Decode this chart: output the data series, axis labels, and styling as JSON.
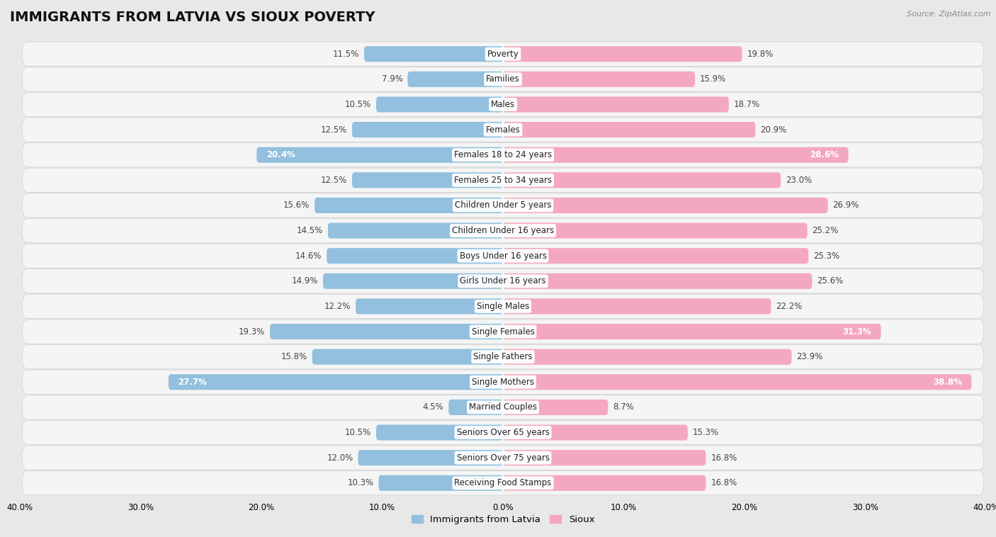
{
  "title": "IMMIGRANTS FROM LATVIA VS SIOUX POVERTY",
  "source": "Source: ZipAtlas.com",
  "categories": [
    "Poverty",
    "Families",
    "Males",
    "Females",
    "Females 18 to 24 years",
    "Females 25 to 34 years",
    "Children Under 5 years",
    "Children Under 16 years",
    "Boys Under 16 years",
    "Girls Under 16 years",
    "Single Males",
    "Single Females",
    "Single Fathers",
    "Single Mothers",
    "Married Couples",
    "Seniors Over 65 years",
    "Seniors Over 75 years",
    "Receiving Food Stamps"
  ],
  "latvia_values": [
    11.5,
    7.9,
    10.5,
    12.5,
    20.4,
    12.5,
    15.6,
    14.5,
    14.6,
    14.9,
    12.2,
    19.3,
    15.8,
    27.7,
    4.5,
    10.5,
    12.0,
    10.3
  ],
  "sioux_values": [
    19.8,
    15.9,
    18.7,
    20.9,
    28.6,
    23.0,
    26.9,
    25.2,
    25.3,
    25.6,
    22.2,
    31.3,
    23.9,
    38.8,
    8.7,
    15.3,
    16.8,
    16.8
  ],
  "latvia_color": "#92c0de",
  "sioux_color": "#f4a8bf",
  "axis_max": 40.0,
  "background_color": "#e8e8e8",
  "bar_background_color": "#f5f5f5",
  "bar_height": 0.62,
  "title_fontsize": 14,
  "label_fontsize": 8.5,
  "value_fontsize": 8.5,
  "legend_label_latvia": "Immigrants from Latvia",
  "legend_label_sioux": "Sioux",
  "latvia_bold_threshold": 20.0,
  "sioux_bold_threshold": 28.0
}
